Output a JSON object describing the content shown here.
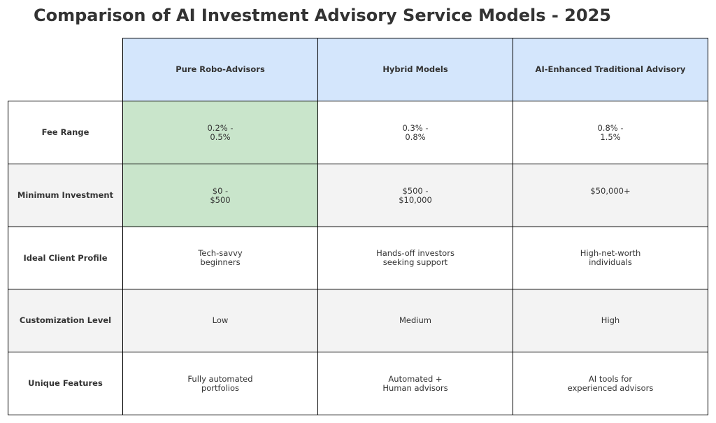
{
  "title": "Comparison of AI Investment Advisory Service Models - 2025",
  "colors": {
    "header_bg": "#d4e6fc",
    "highlight_bg": "#c9e5cb",
    "alt_row_bg": "#f3f3f3",
    "row_bg": "#ffffff",
    "border": "#000000",
    "text": "#333333"
  },
  "chart_data": {
    "type": "table",
    "title": "Comparison of AI Investment Advisory Service Models - 2025",
    "columns": [
      "Pure Robo-Advisors",
      "Hybrid Models",
      "AI-Enhanced Traditional Advisory"
    ],
    "rows": [
      {
        "label": "Fee Range",
        "values": [
          "0.2% -\n0.5%",
          "0.3% -\n0.8%",
          "0.8% -\n1.5%"
        ],
        "highlight": [
          true,
          false,
          false
        ],
        "shaded": false
      },
      {
        "label": "Minimum Investment",
        "values": [
          "$0 -\n$500",
          "$500 -\n$10,000",
          "$50,000+"
        ],
        "highlight": [
          true,
          false,
          false
        ],
        "shaded": true
      },
      {
        "label": "Ideal Client Profile",
        "values": [
          "Tech-savvy\nbeginners",
          "Hands-off investors\nseeking support",
          "High-net-worth\nindividuals"
        ],
        "highlight": [
          false,
          false,
          false
        ],
        "shaded": false
      },
      {
        "label": "Customization Level",
        "values": [
          "Low",
          "Medium",
          "High"
        ],
        "highlight": [
          false,
          false,
          false
        ],
        "shaded": true
      },
      {
        "label": "Unique Features",
        "values": [
          "Fully automated\nportfolios",
          "Automated +\nHuman advisors",
          "AI tools for\nexperienced advisors"
        ],
        "highlight": [
          false,
          false,
          false
        ],
        "shaded": false
      }
    ]
  }
}
